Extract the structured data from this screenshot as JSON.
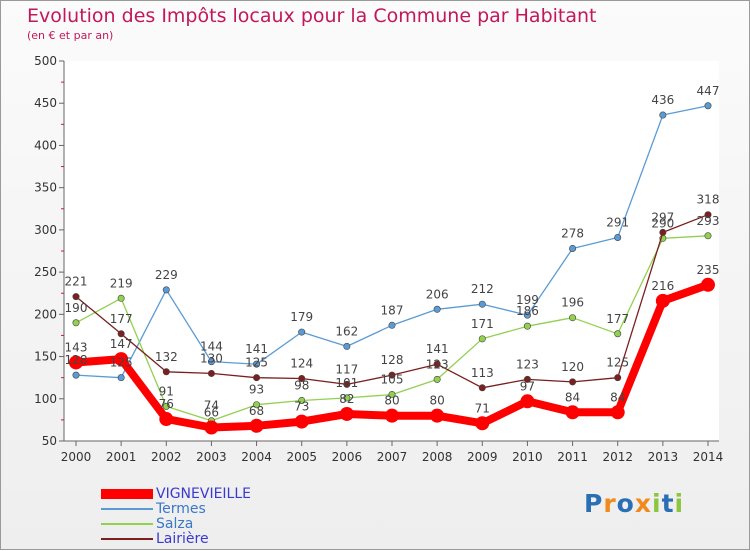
{
  "title": "Evolution des Impôts locaux pour la Commune par Habitant",
  "subtitle": "(en € et par an)",
  "logo_text": "Proxiti",
  "logo_colors": [
    "#2a6fb5",
    "#f08a1c",
    "#2a6fb5",
    "#f08a1c",
    "#8cc63f",
    "#2a6fb5",
    "#8cc63f"
  ],
  "chart_data": {
    "type": "line",
    "x": [
      "2000",
      "2001",
      "2002",
      "2003",
      "2004",
      "2005",
      "2006",
      "2007",
      "2008",
      "2009",
      "2010",
      "2011",
      "2012",
      "2013",
      "2014"
    ],
    "ylim": [
      50,
      500
    ],
    "yticks": [
      "50",
      "100",
      "150",
      "200",
      "250",
      "300",
      "350",
      "400",
      "450",
      "500"
    ],
    "grid": false,
    "legend_position": "bottom-left",
    "series": [
      {
        "name": "VIGNEVIEILLE",
        "color": "#ff0000",
        "values": [
          143,
          147,
          76,
          66,
          68,
          73,
          82,
          80,
          80,
          71,
          97,
          84,
          84,
          216,
          235
        ]
      },
      {
        "name": "Termes",
        "color": "#5b9bd5",
        "values": [
          128,
          125,
          229,
          144,
          141,
          179,
          162,
          187,
          206,
          212,
          199,
          278,
          291,
          436,
          447
        ]
      },
      {
        "name": "Salza",
        "color": "#92d050",
        "values": [
          190,
          219,
          91,
          74,
          93,
          98,
          101,
          105,
          123,
          171,
          186,
          196,
          177,
          290,
          293
        ]
      },
      {
        "name": "Lairière",
        "color": "#7b1f1f",
        "values": [
          221,
          177,
          132,
          130,
          125,
          124,
          117,
          128,
          141,
          113,
          123,
          120,
          125,
          297,
          318
        ]
      }
    ]
  }
}
